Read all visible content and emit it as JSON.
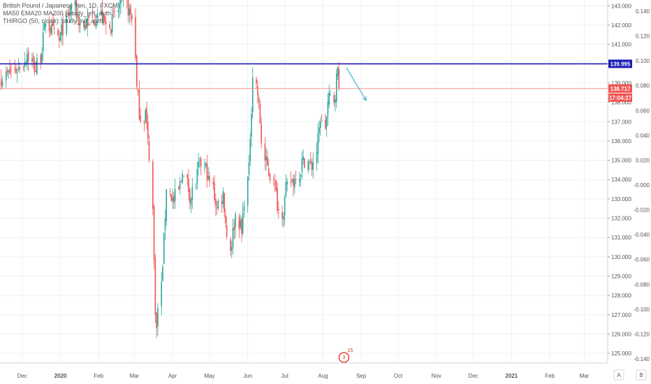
{
  "legend": {
    "line1": "British Pound / Japanese Yen, 1D, FXCM",
    "line2": "MA50 EMA20 MA200 | study_left_auth",
    "line3": "THIRGO (50, close): study_nd_auth"
  },
  "colors": {
    "up": "#26a69a",
    "down": "#ef5350",
    "hline": "#1a1ab3",
    "priceLine": "#f1948a",
    "arrow": "#45b6d6",
    "axisText": "#555555",
    "grid": "#eef0f3"
  },
  "chart_data": {
    "type": "candlestick",
    "xlabels": [
      "Dec",
      "2020",
      "Feb",
      "Mar",
      "Apr",
      "May",
      "Jun",
      "Jul",
      "Aug",
      "Sep",
      "Oct",
      "Nov",
      "Dec",
      "2021",
      "Feb",
      "Mar"
    ],
    "left_axis": {
      "ticks": [
        "143.000",
        "142.000",
        "141.000",
        "140.000",
        "139.000",
        "138.000",
        "137.000",
        "136.000",
        "135.000",
        "134.000",
        "133.000",
        "132.000",
        "131.000",
        "130.000",
        "129.000",
        "128.000",
        "127.000",
        "126.000",
        "125.000"
      ],
      "range": [
        124.5,
        143.3
      ]
    },
    "right_axis": {
      "ticks": [
        "0.140",
        "0.120",
        "0.100",
        "0.080",
        "0.060",
        "0.040",
        "0.020",
        "-0.000",
        "-0.020",
        "-0.040",
        "-0.060",
        "-0.080",
        "-0.100",
        "-0.120",
        "-0.140"
      ]
    },
    "hline": {
      "value": 139.995,
      "label": "139.995"
    },
    "last_price": {
      "value": 138.717,
      "label": "138.717",
      "countdown": "17:04:27"
    },
    "arrow": {
      "from": [
        "2020-08-20",
        139.8
      ],
      "to": [
        "2020-09-05",
        138.1
      ]
    },
    "axis_buttons": [
      "A",
      "B"
    ],
    "logo": {
      "text": "15",
      "sub": "3"
    },
    "segments": [
      {
        "end": "2019-11-28",
        "close": 139.8
      },
      {
        "end": "2019-12-05",
        "close": 140.5
      },
      {
        "end": "2019-12-12",
        "close": 139.6
      },
      {
        "end": "2019-12-20",
        "close": 142.1
      },
      {
        "end": "2019-12-31",
        "close": 141.2
      },
      {
        "end": "2020-01-10",
        "close": 143.0
      },
      {
        "end": "2020-01-20",
        "close": 141.9
      },
      {
        "end": "2020-01-31",
        "close": 142.6
      },
      {
        "end": "2020-02-10",
        "close": 141.8
      },
      {
        "end": "2020-02-20",
        "close": 143.4
      },
      {
        "end": "2020-02-28",
        "close": 142.3
      },
      {
        "end": "2020-03-03",
        "close": 138.8
      },
      {
        "end": "2020-03-06",
        "close": 137.0
      },
      {
        "end": "2020-03-10",
        "close": 137.6
      },
      {
        "end": "2020-03-13",
        "close": 135.0
      },
      {
        "end": "2020-03-16",
        "close": 132.5
      },
      {
        "end": "2020-03-18",
        "close": 127.0
      },
      {
        "end": "2020-03-19",
        "close": 126.3
      },
      {
        "end": "2020-03-24",
        "close": 129.5
      },
      {
        "end": "2020-03-27",
        "close": 133.5
      },
      {
        "end": "2020-04-02",
        "close": 132.8
      },
      {
        "end": "2020-04-09",
        "close": 134.3
      },
      {
        "end": "2020-04-16",
        "close": 133.0
      },
      {
        "end": "2020-04-23",
        "close": 135.0
      },
      {
        "end": "2020-04-30",
        "close": 134.2
      },
      {
        "end": "2020-05-07",
        "close": 132.5
      },
      {
        "end": "2020-05-12",
        "close": 133.4
      },
      {
        "end": "2020-05-18",
        "close": 130.3
      },
      {
        "end": "2020-05-22",
        "close": 132.2
      },
      {
        "end": "2020-05-27",
        "close": 131.2
      },
      {
        "end": "2020-06-02",
        "close": 134.9
      },
      {
        "end": "2020-06-05",
        "close": 139.3
      },
      {
        "end": "2020-06-10",
        "close": 138.0
      },
      {
        "end": "2020-06-15",
        "close": 135.0
      },
      {
        "end": "2020-06-22",
        "close": 134.0
      },
      {
        "end": "2020-06-29",
        "close": 132.0
      },
      {
        "end": "2020-07-03",
        "close": 133.9
      },
      {
        "end": "2020-07-10",
        "close": 134.0
      },
      {
        "end": "2020-07-16",
        "close": 135.2
      },
      {
        "end": "2020-07-23",
        "close": 134.5
      },
      {
        "end": "2020-07-30",
        "close": 137.0
      },
      {
        "end": "2020-08-03",
        "close": 136.6
      },
      {
        "end": "2020-08-06",
        "close": 138.5
      },
      {
        "end": "2020-08-10",
        "close": 138.0
      },
      {
        "end": "2020-08-13",
        "close": 139.8
      },
      {
        "end": "2020-08-16",
        "close": 138.7
      }
    ]
  }
}
